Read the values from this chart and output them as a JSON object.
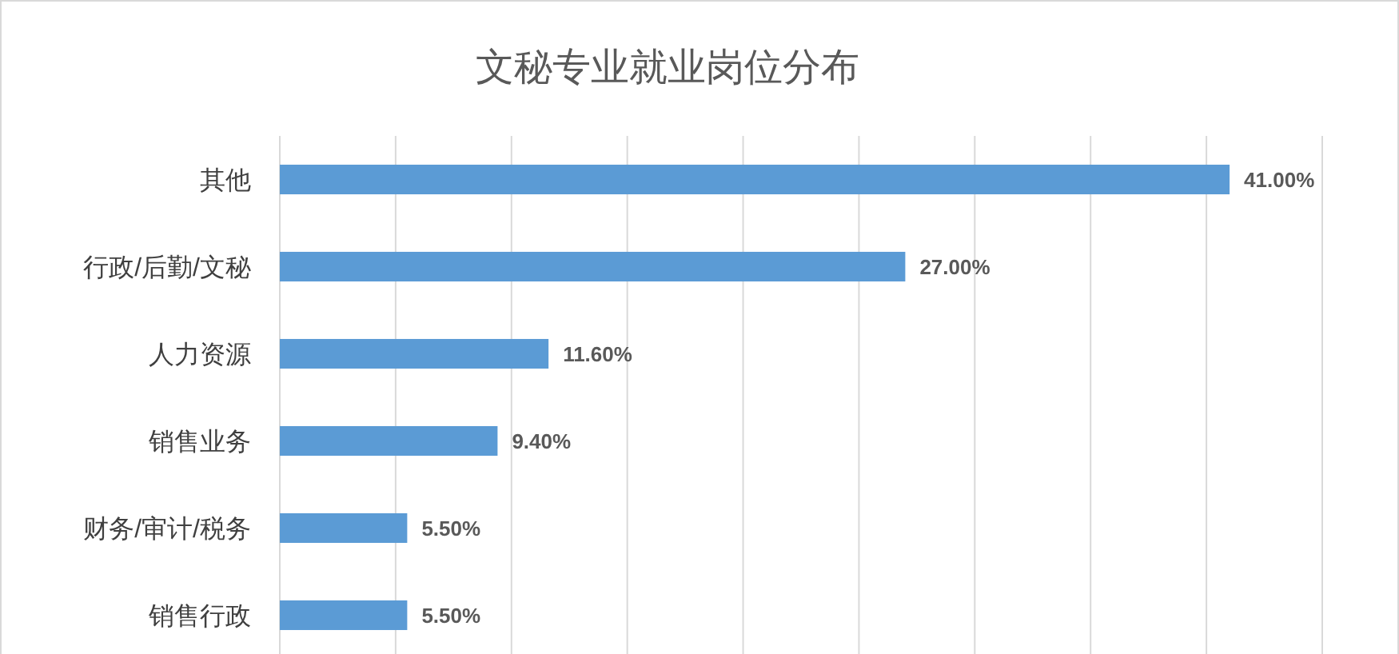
{
  "chart_data": {
    "type": "bar",
    "orientation": "horizontal",
    "title": "文秘专业就业岗位分布",
    "categories": [
      "其他",
      "行政/后勤/文秘",
      "人力资源",
      "销售业务",
      "财务/审计/税务",
      "销售行政"
    ],
    "values": [
      41,
      27,
      11.6,
      9.4,
      5.5,
      5.5
    ],
    "value_labels": [
      "41.00%",
      "27.00%",
      "11.60%",
      "9.40%",
      "5.50%",
      "5.50%"
    ],
    "color": "#5b9bd5",
    "xlim": [
      0,
      45
    ],
    "xticks": [
      {
        "value": 0,
        "label": null
      },
      {
        "value": 5,
        "label": null
      },
      {
        "value": 10,
        "label": null
      },
      {
        "value": 15,
        "label": null
      },
      {
        "value": 20,
        "label": null
      },
      {
        "value": 25,
        "label": null
      },
      {
        "value": 30,
        "label": null
      },
      {
        "value": 35,
        "label": null
      },
      {
        "value": 40,
        "label": null
      },
      {
        "value": 45,
        "label": null
      }
    ],
    "tick_labels": "y",
    "grid": "x"
  }
}
